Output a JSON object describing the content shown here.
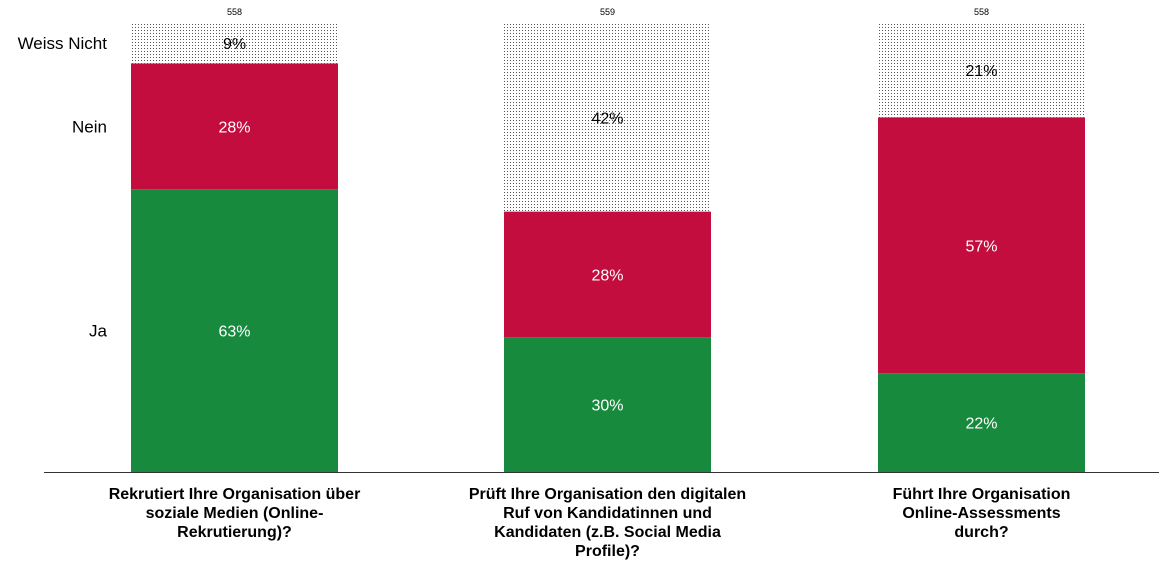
{
  "chart_data": {
    "type": "bar",
    "stacked": true,
    "normalized_100": true,
    "categories": [
      [
        "Rekrutiert Ihre Organisation über",
        "soziale Medien (Online-",
        "Rekrutierung)?"
      ],
      [
        "Prüft Ihre Organisation den digitalen",
        "Ruf von Kandidatinnen und",
        "Kandidaten (z.B. Social Media",
        "Profile)?"
      ],
      [
        "Führt Ihre Organisation",
        "Online-Assessments",
        "durch?"
      ]
    ],
    "sample_sizes": [
      "558",
      "559",
      "558"
    ],
    "series": [
      {
        "name": "Ja",
        "values": [
          63,
          30,
          22
        ],
        "labels": [
          "63%",
          "30%",
          "22%"
        ],
        "color": "#188a3e",
        "text_color": "#ffffff"
      },
      {
        "name": "Nein",
        "values": [
          28,
          28,
          57
        ],
        "labels": [
          "28%",
          "28%",
          "57%"
        ],
        "color": "#c30d3e",
        "text_color": "#ffffff"
      },
      {
        "name": "Weiss Nicht",
        "values": [
          9,
          42,
          21
        ],
        "labels": [
          "9%",
          "42%",
          "21%"
        ],
        "color": "dotted",
        "text_color": "#000000"
      }
    ],
    "legend_placement": "left, aligned with first bar segments",
    "ylim": [
      0,
      100
    ],
    "grid": false
  }
}
